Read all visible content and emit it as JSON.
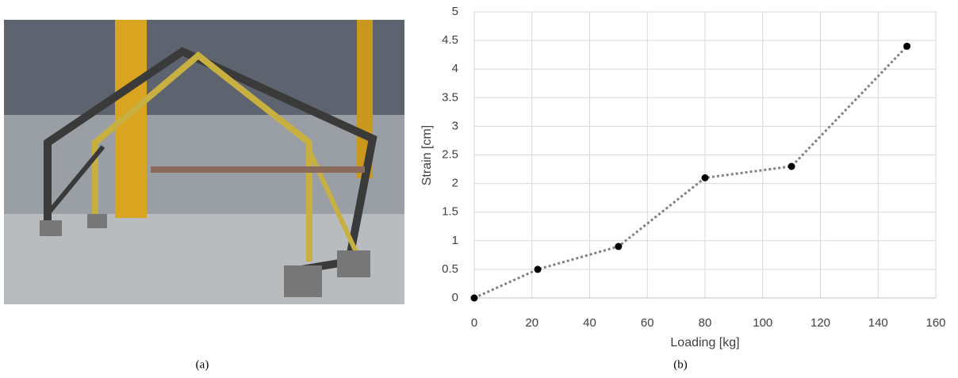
{
  "chart_data": {
    "type": "line",
    "x_label": "Loading [kg]",
    "y_label": "Strain [cm]",
    "x": [
      0,
      22,
      50,
      80,
      110,
      150
    ],
    "values": [
      0,
      0.5,
      0.9,
      2.1,
      2.3,
      4.4
    ],
    "color": "#808080",
    "marker_color": "#000000",
    "line_style": "dotted",
    "xlim": [
      0,
      160
    ],
    "xticks": [
      0,
      20,
      40,
      60,
      80,
      100,
      120,
      140,
      160
    ],
    "ylim": [
      0,
      5
    ],
    "yticks": [
      0,
      0.5,
      1,
      1.5,
      2,
      2.5,
      3,
      3.5,
      4,
      4.5,
      5
    ],
    "grid": true
  },
  "captions": [
    "(a)",
    "(b)"
  ]
}
